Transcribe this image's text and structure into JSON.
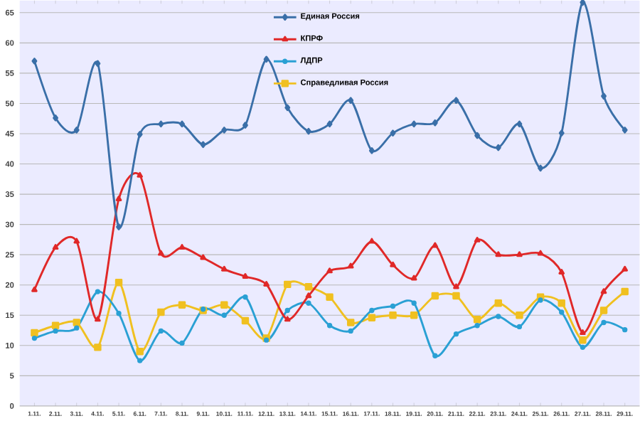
{
  "chart_data": {
    "type": "line",
    "categories": [
      "1.11.",
      "2.11.",
      "3.11.",
      "4.11.",
      "5.11.",
      "6.11.",
      "7.11.",
      "8.11.",
      "9.11.",
      "10.11.",
      "11.11.",
      "12.11.",
      "13.11.",
      "14.11.",
      "15.11.",
      "16.11.",
      "17.11.",
      "18.11.",
      "19.11.",
      "20.11.",
      "21.11.",
      "22.11.",
      "23.11.",
      "24.11.",
      "25.11.",
      "26.11.",
      "27.11.",
      "28.11.",
      "29.11."
    ],
    "series": [
      {
        "name": "Единая Россия",
        "color": "#3a6fa8",
        "marker": "diamond",
        "values": [
          57.0,
          47.6,
          45.6,
          56.6,
          29.6,
          44.9,
          46.6,
          46.6,
          43.2,
          45.6,
          46.4,
          57.3,
          49.3,
          45.4,
          46.6,
          50.5,
          42.2,
          45.1,
          46.6,
          46.8,
          50.5,
          44.7,
          42.7,
          46.6,
          39.3,
          45.1,
          66.7,
          51.2,
          45.6
        ]
      },
      {
        "name": "КПРФ",
        "color": "#e02828",
        "marker": "triangle",
        "values": [
          19.2,
          26.2,
          27.2,
          14.3,
          34.2,
          38.1,
          25.2,
          26.2,
          24.5,
          22.6,
          21.4,
          20.1,
          14.3,
          18.2,
          22.3,
          23.1,
          27.2,
          23.3,
          21.1,
          26.5,
          19.7,
          27.4,
          25.0,
          25.0,
          25.2,
          22.1,
          12.1,
          18.9,
          22.6
        ]
      },
      {
        "name": "ЛДПР",
        "color": "#2aa0d4",
        "marker": "circle",
        "values": [
          11.2,
          12.4,
          12.9,
          18.9,
          15.3,
          7.5,
          12.4,
          10.4,
          16.0,
          15.0,
          18.0,
          10.9,
          15.8,
          17.0,
          13.3,
          12.4,
          15.8,
          16.5,
          17.0,
          8.3,
          11.9,
          13.3,
          14.8,
          13.1,
          17.5,
          15.5,
          9.7,
          13.8,
          12.6
        ]
      },
      {
        "name": "Справедливая Россия",
        "color": "#f0c020",
        "marker": "square",
        "values": [
          12.1,
          13.3,
          13.8,
          9.7,
          20.4,
          9.0,
          15.5,
          16.7,
          15.8,
          16.7,
          14.1,
          11.2,
          20.1,
          19.7,
          18.0,
          13.8,
          14.6,
          15.0,
          15.0,
          18.2,
          18.2,
          14.3,
          17.0,
          15.0,
          18.0,
          17.0,
          10.9,
          15.8,
          18.9
        ]
      }
    ],
    "ylim": [
      0,
      67
    ],
    "yticks": [
      0,
      5,
      10,
      15,
      20,
      25,
      30,
      35,
      40,
      45,
      50,
      55,
      60,
      65
    ],
    "grid": "y",
    "legend": "top",
    "line_style": "solid"
  }
}
